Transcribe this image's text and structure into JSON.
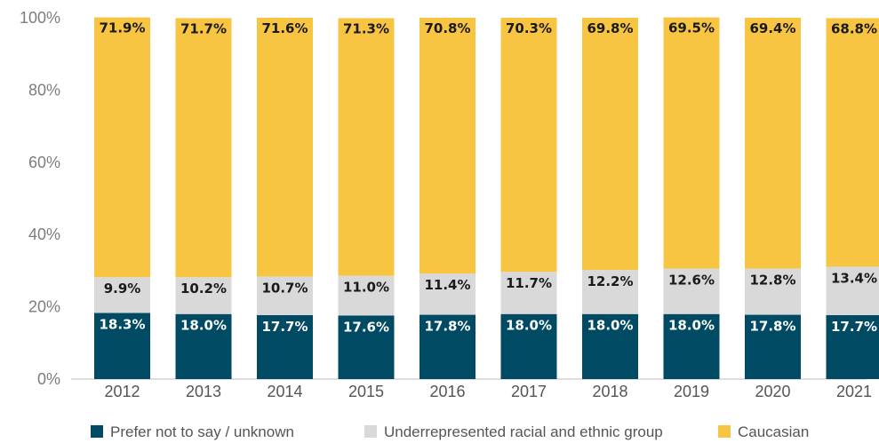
{
  "chart_data": {
    "type": "bar",
    "stacked": true,
    "categories": [
      "2012",
      "2013",
      "2014",
      "2015",
      "2016",
      "2017",
      "2018",
      "2019",
      "2020",
      "2021"
    ],
    "series": [
      {
        "name": "Prefer not to say / unknown",
        "color": "#004b63",
        "label_color": "#ffffff",
        "values": [
          18.3,
          18.0,
          17.7,
          17.6,
          17.8,
          18.0,
          18.0,
          18.0,
          17.8,
          17.7
        ],
        "labels": [
          "18.3%",
          "18.0%",
          "17.7%",
          "17.6%",
          "17.8%",
          "18.0%",
          "18.0%",
          "18.0%",
          "17.8%",
          "17.7%"
        ]
      },
      {
        "name": "Underrepresented racial and ethnic group",
        "color": "#d9d9d9",
        "label_color": "#1a1a1a",
        "values": [
          9.9,
          10.2,
          10.7,
          11.0,
          11.4,
          11.7,
          12.2,
          12.6,
          12.8,
          13.4
        ],
        "labels": [
          "9.9%",
          "10.2%",
          "10.7%",
          "11.0%",
          "11.4%",
          "11.7%",
          "12.2%",
          "12.6%",
          "12.8%",
          "13.4%"
        ]
      },
      {
        "name": "Caucasian",
        "color": "#f8c542",
        "label_color": "#1a1a1a",
        "values": [
          71.9,
          71.7,
          71.6,
          71.3,
          70.8,
          70.3,
          69.8,
          69.5,
          69.4,
          68.8
        ],
        "labels": [
          "71.9%",
          "71.7%",
          "71.6%",
          "71.3%",
          "70.8%",
          "70.3%",
          "69.8%",
          "69.5%",
          "69.4%",
          "68.8%"
        ]
      }
    ],
    "y_ticks": [
      "0%",
      "20%",
      "40%",
      "60%",
      "80%",
      "100%"
    ],
    "ylim": [
      0,
      100
    ],
    "grid": false,
    "legend_position": "bottom"
  }
}
